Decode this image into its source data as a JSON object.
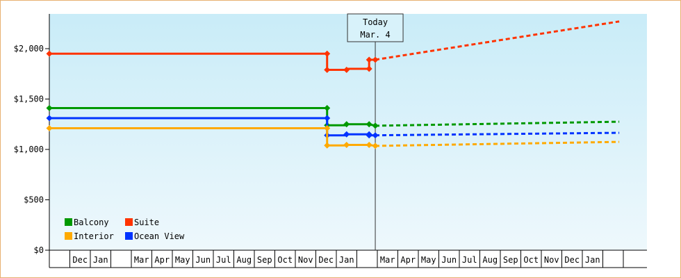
{
  "chart_data": {
    "type": "line",
    "title": "",
    "xlabel": "",
    "ylabel": "",
    "ylim": [
      0,
      2300
    ],
    "y_ticks": [
      {
        "value": 0,
        "label": "$0"
      },
      {
        "value": 500,
        "label": "$500"
      },
      {
        "value": 1000,
        "label": "$1,000"
      },
      {
        "value": 1500,
        "label": "$1,500"
      },
      {
        "value": 2000,
        "label": "$2,000"
      }
    ],
    "months": [
      {
        "index": 0,
        "label": ""
      },
      {
        "index": 1,
        "label": "Dec"
      },
      {
        "index": 2,
        "label": "Jan"
      },
      {
        "index": 3,
        "label": ""
      },
      {
        "index": 4,
        "label": "Mar"
      },
      {
        "index": 5,
        "label": "Apr"
      },
      {
        "index": 6,
        "label": "May"
      },
      {
        "index": 7,
        "label": "Jun"
      },
      {
        "index": 8,
        "label": "Jul"
      },
      {
        "index": 9,
        "label": "Aug"
      },
      {
        "index": 10,
        "label": "Sep"
      },
      {
        "index": 11,
        "label": "Oct"
      },
      {
        "index": 12,
        "label": "Nov"
      },
      {
        "index": 13,
        "label": "Dec"
      },
      {
        "index": 14,
        "label": "Jan"
      },
      {
        "index": 15,
        "label": ""
      },
      {
        "index": 16,
        "label": "Mar"
      },
      {
        "index": 17,
        "label": "Apr"
      },
      {
        "index": 18,
        "label": "May"
      },
      {
        "index": 19,
        "label": "Jun"
      },
      {
        "index": 20,
        "label": "Jul"
      },
      {
        "index": 21,
        "label": "Aug"
      },
      {
        "index": 22,
        "label": "Sep"
      },
      {
        "index": 23,
        "label": "Oct"
      },
      {
        "index": 24,
        "label": "Nov"
      },
      {
        "index": 25,
        "label": "Dec"
      },
      {
        "index": 26,
        "label": "Jan"
      },
      {
        "index": 27,
        "label": ""
      }
    ],
    "today": {
      "line1": "Today",
      "line2": "Mar. 4",
      "x": 15.9
    },
    "legend": {
      "placement": "bottom-left"
    },
    "series": [
      {
        "name": "Suite",
        "color": "#ff3300",
        "history": [
          [
            0,
            1950
          ],
          [
            13.55,
            1950
          ],
          [
            13.55,
            1790
          ],
          [
            14.5,
            1790
          ],
          [
            14.5,
            1800
          ],
          [
            15.6,
            1800
          ],
          [
            15.6,
            1890
          ],
          [
            15.9,
            1890
          ]
        ],
        "markers": [
          [
            0,
            1950
          ],
          [
            13.55,
            1950
          ],
          [
            13.55,
            1790
          ],
          [
            14.5,
            1790
          ],
          [
            15.6,
            1800
          ],
          [
            15.6,
            1890
          ],
          [
            15.9,
            1890
          ]
        ],
        "forecast": [
          [
            15.9,
            1890
          ],
          [
            27.8,
            2270
          ]
        ]
      },
      {
        "name": "Balcony",
        "color": "#009900",
        "history": [
          [
            0,
            1410
          ],
          [
            13.55,
            1410
          ],
          [
            13.55,
            1240
          ],
          [
            14.5,
            1240
          ],
          [
            14.5,
            1250
          ],
          [
            15.6,
            1250
          ],
          [
            15.9,
            1235
          ]
        ],
        "markers": [
          [
            0,
            1410
          ],
          [
            13.55,
            1410
          ],
          [
            13.55,
            1240
          ],
          [
            14.5,
            1250
          ],
          [
            15.6,
            1250
          ],
          [
            15.9,
            1235
          ]
        ],
        "forecast": [
          [
            15.9,
            1235
          ],
          [
            27.8,
            1275
          ]
        ]
      },
      {
        "name": "Ocean View",
        "color": "#0033ff",
        "history": [
          [
            0,
            1310
          ],
          [
            13.55,
            1310
          ],
          [
            13.55,
            1140
          ],
          [
            14.5,
            1140
          ],
          [
            14.5,
            1150
          ],
          [
            15.6,
            1150
          ],
          [
            15.6,
            1140
          ],
          [
            15.9,
            1140
          ]
        ],
        "markers": [
          [
            0,
            1310
          ],
          [
            13.55,
            1310
          ],
          [
            13.55,
            1140
          ],
          [
            14.5,
            1150
          ],
          [
            15.6,
            1150
          ],
          [
            15.6,
            1140
          ],
          [
            15.9,
            1140
          ]
        ],
        "forecast": [
          [
            15.9,
            1140
          ],
          [
            27.8,
            1165
          ]
        ]
      },
      {
        "name": "Interior",
        "color": "#ffaa00",
        "history": [
          [
            0,
            1210
          ],
          [
            13.55,
            1210
          ],
          [
            13.55,
            1040
          ],
          [
            14.5,
            1040
          ],
          [
            14.5,
            1045
          ],
          [
            15.6,
            1045
          ],
          [
            15.9,
            1035
          ]
        ],
        "markers": [
          [
            0,
            1210
          ],
          [
            13.55,
            1210
          ],
          [
            13.55,
            1040
          ],
          [
            14.5,
            1045
          ],
          [
            15.6,
            1045
          ],
          [
            15.9,
            1035
          ]
        ],
        "forecast": [
          [
            15.9,
            1035
          ],
          [
            27.8,
            1075
          ]
        ]
      }
    ],
    "legend_order": [
      "Balcony",
      "Suite",
      "Interior",
      "Ocean View"
    ]
  }
}
